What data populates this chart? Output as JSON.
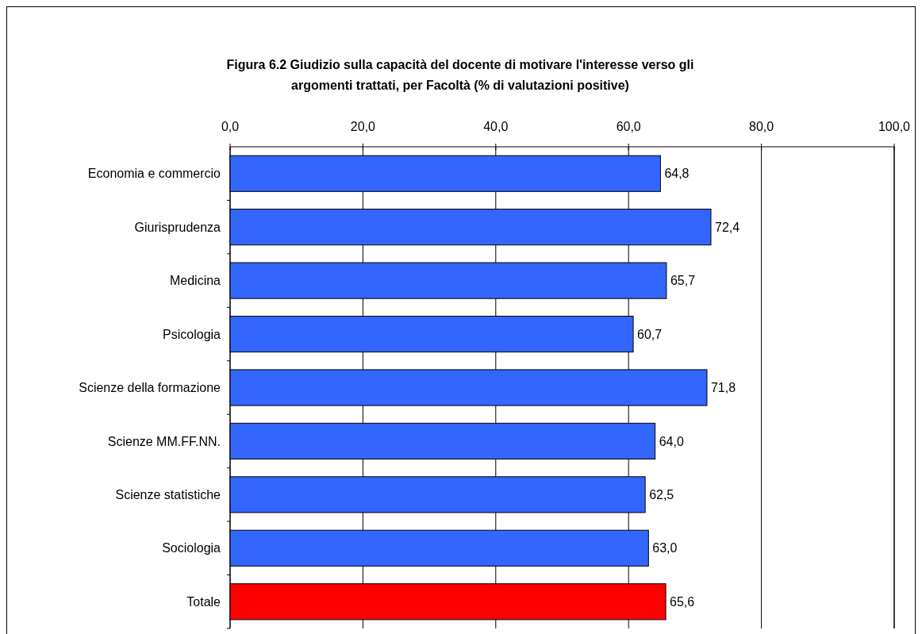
{
  "chart_data": {
    "type": "bar",
    "orientation": "horizontal",
    "title": "Figura 6.2 Giudizio sulla capacità del docente di motivare l'interesse verso gli\nargomenti trattati, per Facoltà (% di valutazioni positive)",
    "categories": [
      "Economia e commercio",
      "Giurisprudenza",
      "Medicina",
      "Psicologia",
      "Scienze della formazione",
      "Scienze MM.FF.NN.",
      "Scienze statistiche",
      "Sociologia",
      "Totale"
    ],
    "values": [
      64.8,
      72.4,
      65.7,
      60.7,
      71.8,
      64.0,
      62.5,
      63.0,
      65.6
    ],
    "value_labels": [
      "64,8",
      "72,4",
      "65,7",
      "60,7",
      "71,8",
      "64,0",
      "62,5",
      "63,0",
      "65,6"
    ],
    "colors": [
      "#3366ff",
      "#3366ff",
      "#3366ff",
      "#3366ff",
      "#3366ff",
      "#3366ff",
      "#3366ff",
      "#3366ff",
      "#ff0000"
    ],
    "xlim": [
      0,
      100
    ],
    "xticks": [
      {
        "value": 0,
        "label": "0,0"
      },
      {
        "value": 20,
        "label": "20,0"
      },
      {
        "value": 40,
        "label": "40,0"
      },
      {
        "value": 60,
        "label": "60,0"
      },
      {
        "value": 80,
        "label": "80,0"
      },
      {
        "value": 100,
        "label": "100,0"
      }
    ],
    "grid": "x"
  }
}
